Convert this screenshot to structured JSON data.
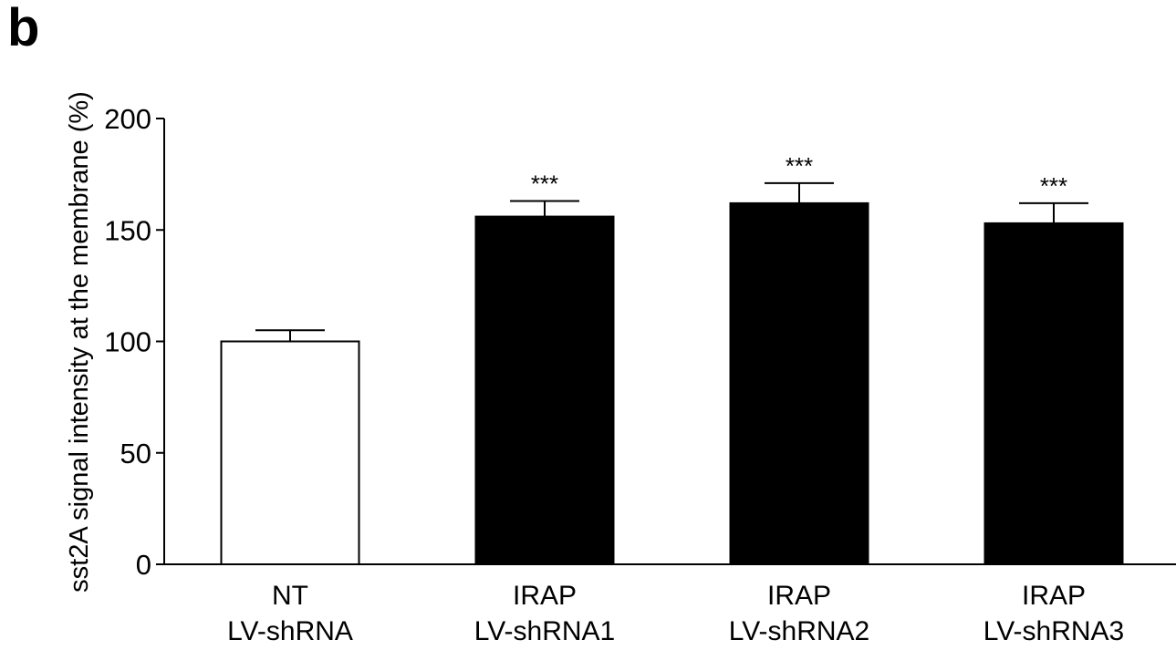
{
  "panel_label": "b",
  "chart_data": {
    "type": "bar",
    "title": "",
    "xlabel": "",
    "ylabel": "sst2A signal intensity at the membrane (%)",
    "ylim": [
      0,
      200
    ],
    "yticks": [
      "0",
      "50",
      "100",
      "150",
      "200"
    ],
    "categories": [
      [
        "NT",
        "LV-shRNA"
      ],
      [
        "IRAP",
        "LV-shRNA1"
      ],
      [
        "IRAP",
        "LV-shRNA2"
      ],
      [
        "IRAP",
        "LV-shRNA3"
      ]
    ],
    "values": [
      100,
      156,
      162,
      153
    ],
    "errors": [
      5,
      7,
      9,
      9
    ],
    "significance": [
      "",
      "***",
      "***",
      "***"
    ],
    "bar_colors": [
      "#ffffff",
      "#000000",
      "#000000",
      "#000000"
    ],
    "grid": false
  }
}
